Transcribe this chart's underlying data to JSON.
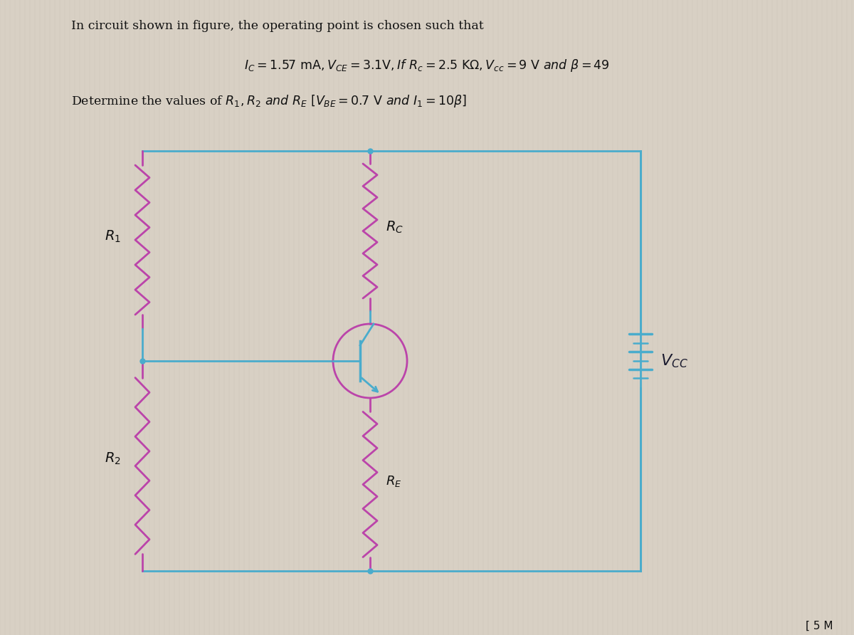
{
  "bg_color": "#d8d0c4",
  "line_color": "#4aaccc",
  "resistor_color": "#bb44aa",
  "text_color": "#1a1a2e",
  "circuit_color": "#4aaccc",
  "resistor_draw_color": "#bb44aa",
  "vcc_label_color": "#1a1a2e",
  "corner_note": "[ 5 M"
}
